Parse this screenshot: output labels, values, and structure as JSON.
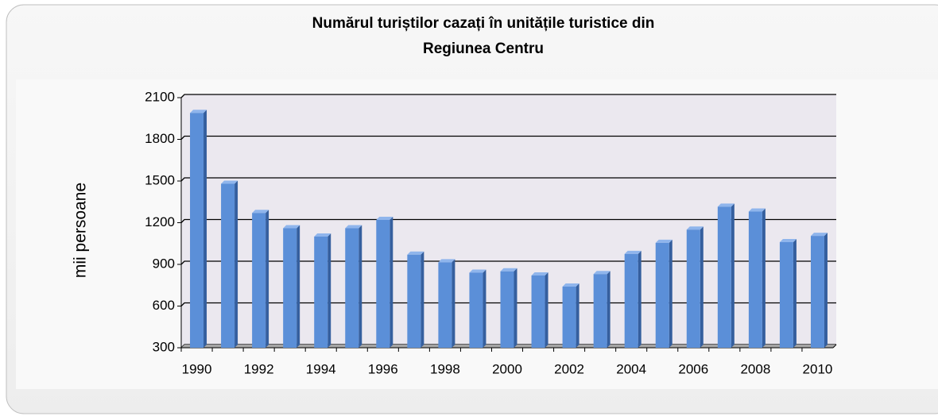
{
  "chart_data": {
    "type": "bar3d",
    "title": [
      "Numărul turiștilor cazați în unitățile turistice din",
      "Regiunea Centru"
    ],
    "y_label": "mii persoane",
    "categories": [
      "1990",
      null,
      "1992",
      null,
      "1994",
      null,
      "1996",
      null,
      "1998",
      null,
      "2000",
      null,
      "2002",
      null,
      "2004",
      null,
      "2006",
      null,
      "2008",
      null,
      "2010"
    ],
    "values": [
      1990,
      1480,
      1270,
      1160,
      1100,
      1160,
      1220,
      970,
      915,
      840,
      850,
      820,
      740,
      830,
      975,
      1055,
      1150,
      1315,
      1280,
      1060,
      1105
    ],
    "color": "#5b8fd8",
    "ylim": [
      300,
      2100
    ],
    "yticks": [
      300,
      600,
      900,
      1200,
      1500,
      1800,
      2100
    ],
    "grid": true
  }
}
